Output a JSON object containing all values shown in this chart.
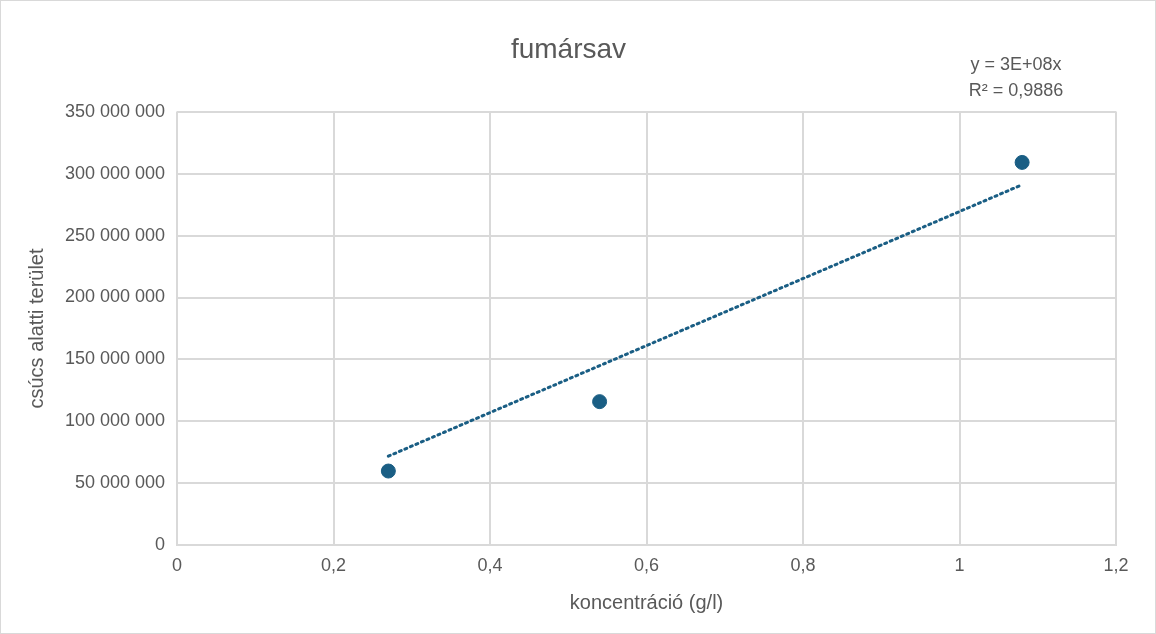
{
  "chart_data": {
    "type": "scatter",
    "title": "fumársav",
    "xlabel": "koncentráció (g/l)",
    "ylabel": "csúcs alatti terület",
    "x": [
      0.27,
      0.54,
      1.08
    ],
    "series": [
      {
        "color": "#1a5e84",
        "values": [
          60000000,
          116000000,
          309000000
        ]
      },
      {
        "type": "line",
        "color": "#1a5e84",
        "line_style": "dotted",
        "marker": "none",
        "x": [
          0.27,
          1.08
        ],
        "values": [
          72000000,
          291000000
        ]
      }
    ],
    "marker": "circle",
    "xlim": [
      0,
      1.2
    ],
    "xticks": [
      0,
      {
        "value": 0.2,
        "label": "0,2"
      },
      {
        "value": 0.4,
        "label": "0,4"
      },
      {
        "value": 0.6,
        "label": "0,6"
      },
      {
        "value": 0.8,
        "label": "0,8"
      },
      1,
      {
        "value": 1.2,
        "label": "1,2"
      }
    ],
    "ylim": [
      0,
      350000000
    ],
    "yticks": [
      0,
      {
        "value": 50000000,
        "label": "50 000 000"
      },
      {
        "value": 100000000,
        "label": "100 000 000"
      },
      {
        "value": 150000000,
        "label": "150 000 000"
      },
      {
        "value": 200000000,
        "label": "200 000 000"
      },
      {
        "value": 250000000,
        "label": "250 000 000"
      },
      {
        "value": 300000000,
        "label": "300 000 000"
      },
      {
        "value": 350000000,
        "label": "350 000 000"
      }
    ],
    "grid": true,
    "legend": false,
    "annotations": [
      "y = 3E+08x",
      "R² = 0,9886"
    ]
  }
}
